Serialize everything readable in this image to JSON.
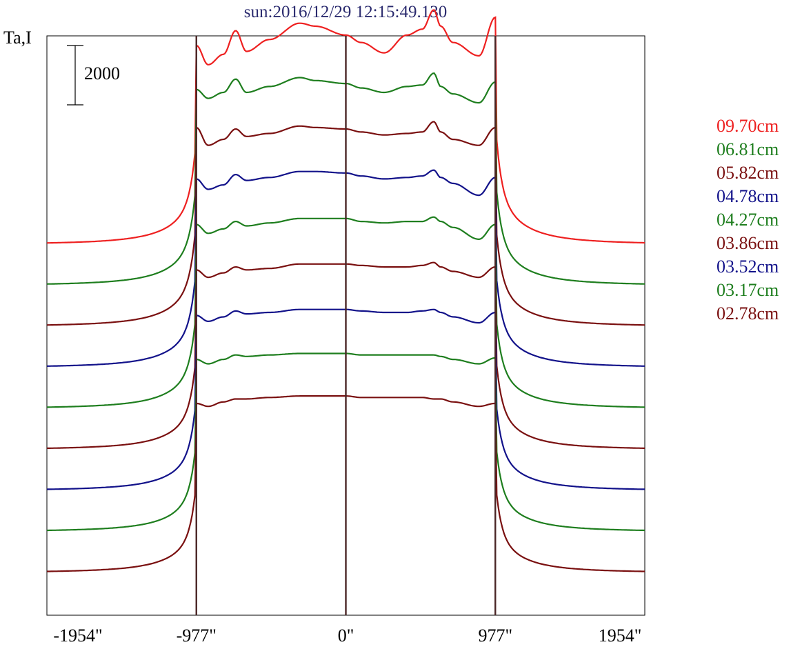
{
  "chart_data": {
    "type": "line",
    "title": "sun:2016/12/29 12:15:49.130",
    "ylabel": "Ta,I",
    "scale_bar_label": "2000",
    "scale_bar_value": 2000,
    "x_ticks": [
      "-1954\"",
      "-977\"",
      "0\"",
      "977\"",
      "1954\""
    ],
    "x_tick_values": [
      -1954,
      -977,
      0,
      977,
      1954
    ],
    "xlim": [
      -1954,
      1954
    ],
    "vertical_lines": [
      -977,
      0,
      977
    ],
    "vertical_line_color": "#4a2626",
    "legend_position": "right",
    "series": [
      {
        "name": "09.70cm",
        "color": "#ee2020",
        "kind": "Ta",
        "baseline": 0,
        "rise": 1,
        "peakL": 7200,
        "plateau": [
          [
            -977,
            6700
          ],
          [
            -900,
            6050
          ],
          [
            -800,
            6400
          ],
          [
            -720,
            7200
          ],
          [
            -650,
            6500
          ],
          [
            -500,
            6900
          ],
          [
            -300,
            7450
          ],
          [
            -200,
            7350
          ],
          [
            0,
            7050
          ],
          [
            100,
            6800
          ],
          [
            250,
            6450
          ],
          [
            400,
            7050
          ],
          [
            500,
            7250
          ],
          [
            575,
            7900
          ],
          [
            620,
            7350
          ],
          [
            700,
            6800
          ],
          [
            870,
            6350
          ],
          [
            977,
            7650
          ]
        ]
      },
      {
        "name": "06.81cm",
        "color": "#1e7e1e",
        "kind": "Ta",
        "baseline": 0,
        "rise": 1,
        "peakL": 7000,
        "plateau": [
          [
            -977,
            6600
          ],
          [
            -900,
            6300
          ],
          [
            -800,
            6500
          ],
          [
            -720,
            6950
          ],
          [
            -650,
            6500
          ],
          [
            -500,
            6700
          ],
          [
            -300,
            7000
          ],
          [
            -200,
            6900
          ],
          [
            0,
            6800
          ],
          [
            100,
            6650
          ],
          [
            250,
            6500
          ],
          [
            400,
            6700
          ],
          [
            500,
            6750
          ],
          [
            575,
            7150
          ],
          [
            620,
            6700
          ],
          [
            700,
            6450
          ],
          [
            870,
            6150
          ],
          [
            977,
            6850
          ]
        ]
      },
      {
        "name": "05.82cm",
        "color": "#7a1010",
        "kind": "Ta",
        "baseline": 0,
        "rise": 1,
        "peakL": 6750,
        "plateau": [
          [
            -977,
            6700
          ],
          [
            -900,
            6100
          ],
          [
            -800,
            6300
          ],
          [
            -720,
            6650
          ],
          [
            -650,
            6400
          ],
          [
            -500,
            6500
          ],
          [
            -300,
            6750
          ],
          [
            -200,
            6700
          ],
          [
            0,
            6650
          ],
          [
            100,
            6550
          ],
          [
            250,
            6450
          ],
          [
            400,
            6500
          ],
          [
            500,
            6550
          ],
          [
            575,
            6900
          ],
          [
            620,
            6550
          ],
          [
            700,
            6300
          ],
          [
            870,
            6100
          ],
          [
            977,
            6700
          ]
        ]
      },
      {
        "name": "04.78cm",
        "color": "#12128a",
        "kind": "Ta",
        "baseline": 0,
        "rise": 1,
        "peakL": 6500,
        "plateau": [
          [
            -977,
            6350
          ],
          [
            -900,
            6000
          ],
          [
            -800,
            6150
          ],
          [
            -720,
            6500
          ],
          [
            -650,
            6300
          ],
          [
            -500,
            6400
          ],
          [
            -300,
            6600
          ],
          [
            -200,
            6600
          ],
          [
            0,
            6550
          ],
          [
            100,
            6450
          ],
          [
            250,
            6350
          ],
          [
            400,
            6400
          ],
          [
            500,
            6450
          ],
          [
            575,
            6650
          ],
          [
            620,
            6400
          ],
          [
            700,
            6200
          ],
          [
            870,
            5800
          ],
          [
            977,
            6400
          ]
        ]
      },
      {
        "name": "04.27cm",
        "color": "#1e7e1e",
        "kind": "Ta",
        "baseline": 0,
        "rise": 1,
        "peakL": 6200,
        "plateau": [
          [
            -977,
            6200
          ],
          [
            -900,
            5900
          ],
          [
            -800,
            6050
          ],
          [
            -720,
            6300
          ],
          [
            -650,
            6150
          ],
          [
            -500,
            6250
          ],
          [
            -300,
            6400
          ],
          [
            -200,
            6400
          ],
          [
            0,
            6400
          ],
          [
            100,
            6300
          ],
          [
            250,
            6250
          ],
          [
            400,
            6300
          ],
          [
            500,
            6300
          ],
          [
            575,
            6450
          ],
          [
            620,
            6300
          ],
          [
            700,
            6100
          ],
          [
            870,
            5700
          ],
          [
            977,
            6200
          ]
        ]
      },
      {
        "name": "03.86cm",
        "color": "#7a1010",
        "kind": "Ta",
        "baseline": 0,
        "rise": 1,
        "peakL": 6050,
        "plateau": [
          [
            -977,
            6050
          ],
          [
            -900,
            5800
          ],
          [
            -800,
            5950
          ],
          [
            -720,
            6150
          ],
          [
            -650,
            6050
          ],
          [
            -500,
            6100
          ],
          [
            -300,
            6250
          ],
          [
            -200,
            6250
          ],
          [
            0,
            6250
          ],
          [
            100,
            6200
          ],
          [
            250,
            6150
          ],
          [
            400,
            6150
          ],
          [
            500,
            6200
          ],
          [
            575,
            6300
          ],
          [
            620,
            6150
          ],
          [
            700,
            6000
          ],
          [
            870,
            5800
          ],
          [
            977,
            6150
          ]
        ]
      },
      {
        "name": "03.52cm",
        "color": "#12128a",
        "kind": "Ta",
        "baseline": 0,
        "rise": 1,
        "peakL": 5900,
        "plateau": [
          [
            -977,
            5900
          ],
          [
            -900,
            5700
          ],
          [
            -800,
            5850
          ],
          [
            -720,
            6050
          ],
          [
            -650,
            5950
          ],
          [
            -500,
            6000
          ],
          [
            -300,
            6100
          ],
          [
            -200,
            6100
          ],
          [
            0,
            6100
          ],
          [
            100,
            6050
          ],
          [
            250,
            6000
          ],
          [
            400,
            6000
          ],
          [
            500,
            6050
          ],
          [
            575,
            6100
          ],
          [
            620,
            6000
          ],
          [
            700,
            5850
          ],
          [
            870,
            5650
          ],
          [
            977,
            6000
          ]
        ]
      },
      {
        "name": "03.17cm",
        "color": "#1e7e1e",
        "kind": "Ta",
        "baseline": 0,
        "rise": 1,
        "peakL": 5800,
        "plateau": [
          [
            -977,
            5800
          ],
          [
            -900,
            5650
          ],
          [
            -800,
            5800
          ],
          [
            -720,
            5950
          ],
          [
            -650,
            5900
          ],
          [
            -500,
            5950
          ],
          [
            -300,
            6000
          ],
          [
            -200,
            6000
          ],
          [
            0,
            6000
          ],
          [
            100,
            5950
          ],
          [
            250,
            5950
          ],
          [
            400,
            5950
          ],
          [
            500,
            5950
          ],
          [
            575,
            5950
          ],
          [
            620,
            5900
          ],
          [
            700,
            5800
          ],
          [
            870,
            5650
          ],
          [
            977,
            5850
          ]
        ]
      },
      {
        "name": "02.78cm",
        "color": "#7a1010",
        "kind": "Ta",
        "baseline": 0,
        "rise": 1,
        "peakL": 5700,
        "plateau": [
          [
            -977,
            5700
          ],
          [
            -900,
            5600
          ],
          [
            -800,
            5750
          ],
          [
            -720,
            5850
          ],
          [
            -650,
            5850
          ],
          [
            -500,
            5900
          ],
          [
            -300,
            5950
          ],
          [
            -200,
            5950
          ],
          [
            0,
            5950
          ],
          [
            100,
            5900
          ],
          [
            250,
            5900
          ],
          [
            400,
            5900
          ],
          [
            500,
            5900
          ],
          [
            575,
            5850
          ],
          [
            620,
            5850
          ],
          [
            700,
            5750
          ],
          [
            870,
            5600
          ],
          [
            977,
            5700
          ]
        ]
      }
    ]
  }
}
